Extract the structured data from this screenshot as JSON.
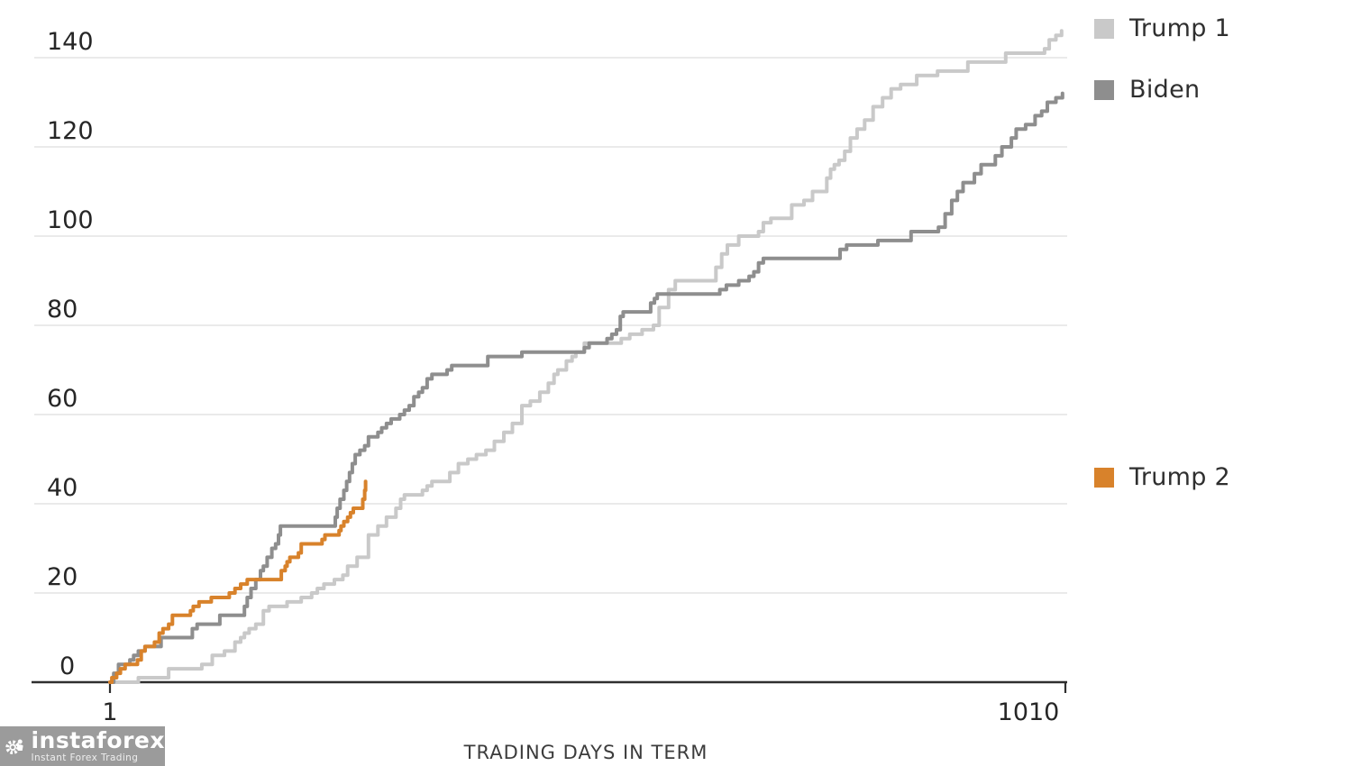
{
  "chart_data": {
    "type": "line",
    "title": "",
    "xlabel": "TRADING DAYS IN TERM",
    "ylabel": "",
    "x_ticks": [
      "1",
      "1010"
    ],
    "y_ticks": [
      0,
      20,
      40,
      60,
      80,
      100,
      120,
      140
    ],
    "xlim": [
      1,
      1010
    ],
    "ylim": [
      0,
      148
    ],
    "grid": "horizontal",
    "step": true,
    "legend_position": "right-staggered",
    "series": [
      {
        "name": "Trump 1",
        "color": "#c9c9c9",
        "points": [
          [
            1,
            0
          ],
          [
            31,
            1
          ],
          [
            63,
            3
          ],
          [
            98,
            4
          ],
          [
            109,
            6
          ],
          [
            122,
            7
          ],
          [
            133,
            9
          ],
          [
            139,
            10
          ],
          [
            143,
            11
          ],
          [
            148,
            12
          ],
          [
            155,
            13
          ],
          [
            163,
            16
          ],
          [
            169,
            17
          ],
          [
            188,
            18
          ],
          [
            203,
            19
          ],
          [
            214,
            20
          ],
          [
            220,
            21
          ],
          [
            227,
            22
          ],
          [
            238,
            23
          ],
          [
            247,
            24
          ],
          [
            252,
            26
          ],
          [
            262,
            28
          ],
          [
            274,
            33
          ],
          [
            284,
            35
          ],
          [
            293,
            37
          ],
          [
            303,
            39
          ],
          [
            308,
            41
          ],
          [
            312,
            42
          ],
          [
            331,
            43
          ],
          [
            336,
            44
          ],
          [
            341,
            45
          ],
          [
            360,
            47
          ],
          [
            369,
            49
          ],
          [
            379,
            50
          ],
          [
            388,
            51
          ],
          [
            398,
            52
          ],
          [
            407,
            54
          ],
          [
            417,
            56
          ],
          [
            426,
            58
          ],
          [
            436,
            62
          ],
          [
            445,
            63
          ],
          [
            455,
            65
          ],
          [
            464,
            67
          ],
          [
            470,
            69
          ],
          [
            474,
            70
          ],
          [
            483,
            72
          ],
          [
            489,
            73
          ],
          [
            493,
            74
          ],
          [
            502,
            76
          ],
          [
            521,
            76
          ],
          [
            541,
            77
          ],
          [
            550,
            78
          ],
          [
            563,
            79
          ],
          [
            575,
            80
          ],
          [
            581,
            84
          ],
          [
            591,
            88
          ],
          [
            598,
            90
          ],
          [
            634,
            90
          ],
          [
            641,
            93
          ],
          [
            647,
            96
          ],
          [
            653,
            98
          ],
          [
            665,
            100
          ],
          [
            686,
            101
          ],
          [
            691,
            103
          ],
          [
            699,
            104
          ],
          [
            721,
            107
          ],
          [
            734,
            108
          ],
          [
            743,
            110
          ],
          [
            755,
            110
          ],
          [
            758,
            113
          ],
          [
            762,
            115
          ],
          [
            766,
            116
          ],
          [
            771,
            117
          ],
          [
            777,
            119
          ],
          [
            783,
            122
          ],
          [
            790,
            124
          ],
          [
            798,
            126
          ],
          [
            807,
            129
          ],
          [
            817,
            131
          ],
          [
            826,
            133
          ],
          [
            836,
            134
          ],
          [
            853,
            136
          ],
          [
            875,
            137
          ],
          [
            907,
            139
          ],
          [
            945,
            139
          ],
          [
            947,
            141
          ],
          [
            984,
            141
          ],
          [
            988,
            142
          ],
          [
            993,
            144
          ],
          [
            1000,
            145
          ],
          [
            1006,
            146
          ]
        ]
      },
      {
        "name": "Biden",
        "color": "#8e8e8e",
        "points": [
          [
            1,
            0
          ],
          [
            5,
            2
          ],
          [
            10,
            4
          ],
          [
            22,
            5
          ],
          [
            26,
            6
          ],
          [
            31,
            7
          ],
          [
            38,
            8
          ],
          [
            55,
            10
          ],
          [
            67,
            10
          ],
          [
            88,
            12
          ],
          [
            93,
            13
          ],
          [
            112,
            13
          ],
          [
            117,
            15
          ],
          [
            138,
            15
          ],
          [
            143,
            17
          ],
          [
            146,
            19
          ],
          [
            150,
            21
          ],
          [
            155,
            23
          ],
          [
            160,
            25
          ],
          [
            163,
            26
          ],
          [
            167,
            28
          ],
          [
            172,
            30
          ],
          [
            176,
            31
          ],
          [
            179,
            33
          ],
          [
            181,
            35
          ],
          [
            236,
            35
          ],
          [
            239,
            37
          ],
          [
            241,
            39
          ],
          [
            244,
            41
          ],
          [
            248,
            43
          ],
          [
            251,
            45
          ],
          [
            254,
            47
          ],
          [
            257,
            49
          ],
          [
            260,
            51
          ],
          [
            265,
            52
          ],
          [
            270,
            53
          ],
          [
            274,
            55
          ],
          [
            284,
            56
          ],
          [
            288,
            57
          ],
          [
            293,
            58
          ],
          [
            298,
            59
          ],
          [
            307,
            60
          ],
          [
            312,
            61
          ],
          [
            317,
            62
          ],
          [
            322,
            64
          ],
          [
            327,
            65
          ],
          [
            331,
            66
          ],
          [
            336,
            68
          ],
          [
            341,
            69
          ],
          [
            357,
            70
          ],
          [
            362,
            71
          ],
          [
            396,
            71
          ],
          [
            400,
            73
          ],
          [
            407,
            73
          ],
          [
            436,
            74
          ],
          [
            490,
            74
          ],
          [
            502,
            75
          ],
          [
            507,
            76
          ],
          [
            526,
            77
          ],
          [
            531,
            78
          ],
          [
            536,
            79
          ],
          [
            540,
            82
          ],
          [
            543,
            83
          ],
          [
            569,
            83
          ],
          [
            572,
            85
          ],
          [
            576,
            86
          ],
          [
            579,
            87
          ],
          [
            632,
            87
          ],
          [
            645,
            88
          ],
          [
            652,
            89
          ],
          [
            665,
            90
          ],
          [
            676,
            91
          ],
          [
            681,
            92
          ],
          [
            686,
            94
          ],
          [
            691,
            95
          ],
          [
            769,
            95
          ],
          [
            772,
            97
          ],
          [
            779,
            98
          ],
          [
            803,
            98
          ],
          [
            812,
            99
          ],
          [
            845,
            99
          ],
          [
            847,
            101
          ],
          [
            876,
            102
          ],
          [
            883,
            105
          ],
          [
            890,
            108
          ],
          [
            896,
            110
          ],
          [
            902,
            112
          ],
          [
            911,
            112
          ],
          [
            914,
            114
          ],
          [
            921,
            116
          ],
          [
            930,
            116
          ],
          [
            936,
            118
          ],
          [
            943,
            120
          ],
          [
            950,
            120
          ],
          [
            953,
            122
          ],
          [
            958,
            124
          ],
          [
            968,
            125
          ],
          [
            978,
            127
          ],
          [
            985,
            128
          ],
          [
            991,
            130
          ],
          [
            1000,
            131
          ],
          [
            1007,
            132
          ]
        ]
      },
      {
        "name": "Trump 2",
        "color": "#d8822b",
        "points": [
          [
            1,
            0
          ],
          [
            3,
            1
          ],
          [
            8,
            2
          ],
          [
            12,
            3
          ],
          [
            17,
            4
          ],
          [
            28,
            4
          ],
          [
            30,
            5
          ],
          [
            34,
            7
          ],
          [
            38,
            8
          ],
          [
            48,
            9
          ],
          [
            53,
            11
          ],
          [
            57,
            12
          ],
          [
            63,
            13
          ],
          [
            67,
            15
          ],
          [
            86,
            16
          ],
          [
            89,
            17
          ],
          [
            95,
            18
          ],
          [
            105,
            18
          ],
          [
            108,
            19
          ],
          [
            124,
            19
          ],
          [
            127,
            20
          ],
          [
            133,
            21
          ],
          [
            139,
            22
          ],
          [
            146,
            23
          ],
          [
            179,
            23
          ],
          [
            182,
            25
          ],
          [
            186,
            26
          ],
          [
            188,
            27
          ],
          [
            191,
            28
          ],
          [
            200,
            29
          ],
          [
            203,
            31
          ],
          [
            222,
            31
          ],
          [
            225,
            32
          ],
          [
            228,
            33
          ],
          [
            241,
            33
          ],
          [
            243,
            34
          ],
          [
            245,
            35
          ],
          [
            248,
            36
          ],
          [
            252,
            37
          ],
          [
            255,
            38
          ],
          [
            258,
            39
          ],
          [
            266,
            39
          ],
          [
            268,
            41
          ],
          [
            270,
            43
          ],
          [
            271,
            45
          ]
        ]
      }
    ]
  },
  "legend": {
    "items": [
      {
        "label": "Trump 1",
        "color": "#c9c9c9"
      },
      {
        "label": "Biden",
        "color": "#8e8e8e"
      },
      {
        "label": "Trump 2",
        "color": "#d8822b"
      }
    ]
  },
  "watermark": {
    "brand": "instaforex",
    "tagline": "Instant Forex Trading"
  },
  "colors": {
    "gridline": "#e4e4e4",
    "axis": "#2f2f2f",
    "tick_label": "#262626",
    "axis_title": "#3c3c3c",
    "logo_bg": "#9b9b9b"
  }
}
